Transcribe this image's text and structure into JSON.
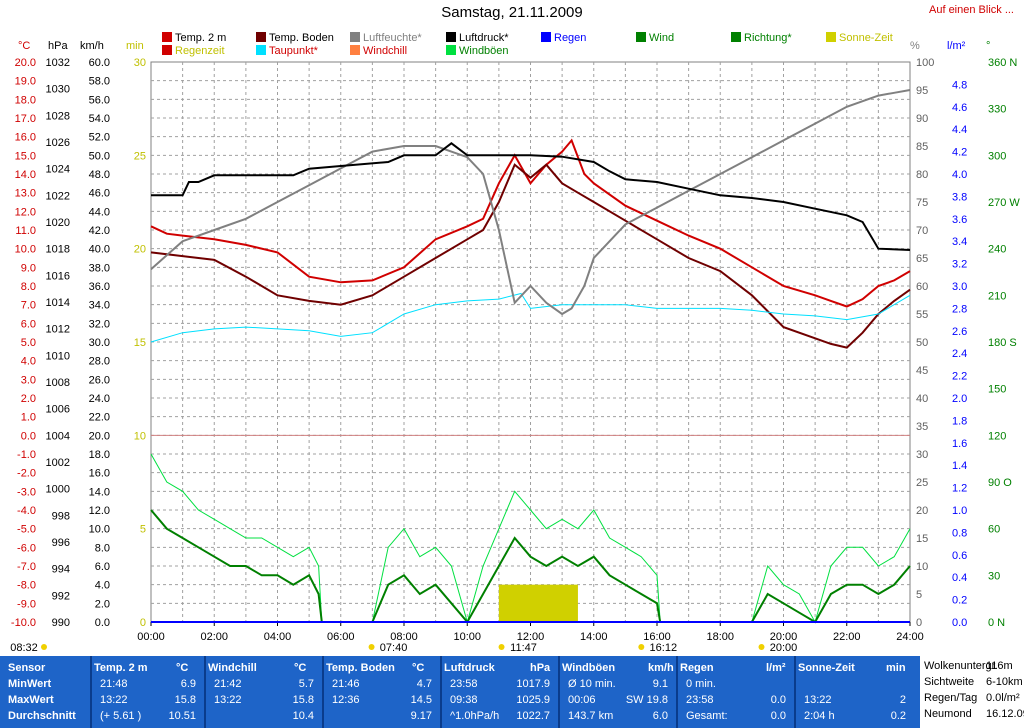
{
  "title": "Samstag, 21.11.2009",
  "link_text": "Auf einen Blick ...",
  "legend": [
    {
      "label": "Temp. 2 m",
      "color": "#d00000"
    },
    {
      "label": "Regenzeit",
      "color": "#d00000"
    },
    {
      "label": "Temp. Boden",
      "color": "#700000"
    },
    {
      "label": "Taupunkt*",
      "color": "#00e0ff"
    },
    {
      "label": "Luftfeuchte*",
      "color": "#808080"
    },
    {
      "label": "Windchill",
      "color": "#ff8040"
    },
    {
      "label": "Luftdruck*",
      "color": "#000000"
    },
    {
      "label": "Windböen",
      "color": "#00e040"
    },
    {
      "label": "Regen",
      "color": "#0000ff"
    },
    {
      "label": "Wind",
      "color": "#008000"
    },
    {
      "label": "Richtung*",
      "color": "#008000"
    },
    {
      "label": "Sonne-Zeit",
      "color": "#d0d000"
    }
  ],
  "units": {
    "temp": "°C",
    "pressure": "hPa",
    "wind": "km/h",
    "minutes": "min",
    "humidity": "%",
    "rain": "l/m²",
    "direction": "°"
  },
  "chart_data": {
    "type": "line",
    "x_ticks": [
      "00:00",
      "02:00",
      "04:00",
      "06:00",
      "08:00",
      "10:00",
      "12:00",
      "14:00",
      "16:00",
      "18:00",
      "20:00",
      "22:00",
      "24:00"
    ],
    "axes": {
      "temp": {
        "range": [
          -10,
          20
        ],
        "step": 1,
        "color": "#d00000"
      },
      "pressure": {
        "range": [
          990,
          1032
        ],
        "step": 2
      },
      "wind": {
        "range": [
          0,
          60
        ],
        "step": 2
      },
      "minutes": {
        "range": [
          0,
          30
        ],
        "step": 5,
        "color": "#c0c000"
      },
      "humidity": {
        "range": [
          0,
          100
        ],
        "step": 5
      },
      "rain": {
        "range": [
          0,
          5
        ],
        "step": 0.2,
        "color": "#0000ff"
      },
      "direction": {
        "ticks": [
          "0 N",
          "30",
          "60",
          "90 O",
          "120",
          "150",
          "180 S",
          "210",
          "240",
          "270 W",
          "300",
          "330",
          "360 N"
        ],
        "color": "#008000"
      }
    },
    "series": [
      {
        "name": "Temp. 2 m",
        "color": "#d00000",
        "x": [
          0,
          0.5,
          1,
          2,
          3,
          4,
          5,
          6,
          7,
          8,
          9,
          10,
          10.5,
          11,
          11.5,
          12,
          12.5,
          13,
          13.3,
          13.7,
          14,
          15,
          16,
          17,
          18,
          19,
          20,
          21,
          21.5,
          22,
          22.5,
          23,
          23.5,
          24
        ],
        "y": [
          11.2,
          10.8,
          10.7,
          10.5,
          10.2,
          9.8,
          8.5,
          8.2,
          8.3,
          9.0,
          10.5,
          11.2,
          11.6,
          13.5,
          15.0,
          13.5,
          14.5,
          15.2,
          15.8,
          14.0,
          13.5,
          12.3,
          11.5,
          10.7,
          10.0,
          9.0,
          8.0,
          7.5,
          7.2,
          6.9,
          7.3,
          8.0,
          8.3,
          8.8
        ]
      },
      {
        "name": "Temp. Boden",
        "color": "#700000",
        "x": [
          0,
          1,
          2,
          3,
          4,
          5,
          6,
          7,
          8,
          9,
          10,
          10.5,
          11,
          11.5,
          12,
          12.5,
          13,
          13.5,
          14,
          15,
          16,
          17,
          18,
          19,
          20,
          21,
          21.5,
          22,
          22.5,
          23,
          23.5,
          24
        ],
        "y": [
          9.8,
          9.6,
          9.4,
          8.5,
          7.5,
          7.2,
          7.0,
          7.5,
          8.5,
          9.5,
          10.5,
          11.0,
          12.5,
          14.5,
          13.8,
          14.5,
          13.5,
          13.0,
          12.5,
          11.5,
          10.5,
          9.5,
          8.8,
          7.5,
          5.8,
          5.2,
          4.9,
          4.7,
          5.5,
          6.5,
          7.2,
          7.8
        ]
      },
      {
        "name": "Taupunkt*",
        "color": "#00e0ff",
        "x": [
          0,
          1,
          2,
          3,
          4,
          5,
          6,
          7,
          8,
          9,
          10,
          11,
          11.7,
          12,
          13,
          14,
          15,
          16,
          17,
          18,
          19,
          20,
          21,
          22,
          23,
          24
        ],
        "y": [
          5.0,
          5.5,
          5.7,
          5.8,
          5.7,
          5.6,
          5.3,
          5.5,
          6.5,
          7.0,
          7.2,
          7.3,
          7.6,
          6.8,
          7.0,
          7.0,
          7.0,
          6.8,
          6.8,
          6.8,
          6.7,
          6.5,
          6.4,
          6.2,
          6.5,
          7.5
        ]
      },
      {
        "name": "Luftfeuchte*",
        "color": "#808080",
        "x": [
          0,
          1,
          2,
          3,
          4,
          5,
          6,
          7,
          8,
          9,
          10,
          10.5,
          11,
          11.5,
          12,
          12.5,
          13,
          13.3,
          13.7,
          14,
          15,
          16,
          17,
          18,
          19,
          20,
          21,
          22,
          23,
          23.5,
          24
        ],
        "y": [
          63,
          68,
          70,
          72,
          75,
          78,
          81,
          84,
          85,
          85,
          83,
          80,
          70,
          57,
          60,
          57,
          55,
          56,
          60,
          65,
          71,
          74,
          77,
          80,
          83,
          86,
          89,
          92,
          94,
          94.5,
          95
        ]
      },
      {
        "name": "Luftdruck*",
        "color": "#000000",
        "x": [
          0,
          1,
          1.2,
          1.5,
          2,
          4.5,
          5,
          6,
          7.5,
          8,
          9,
          9.5,
          10,
          12,
          13,
          14,
          14.5,
          15,
          16,
          17,
          18,
          19,
          20,
          21,
          22,
          22.5,
          23,
          24
        ],
        "y": [
          1022,
          1022,
          1023,
          1023,
          1023.5,
          1023.5,
          1024,
          1024.2,
          1024.5,
          1025.0,
          1025.0,
          1025.9,
          1025.0,
          1025.0,
          1024.9,
          1024.5,
          1023.8,
          1023.2,
          1023.0,
          1022.5,
          1022.0,
          1021.8,
          1021.5,
          1021.0,
          1020.5,
          1020.0,
          1018.0,
          1017.9
        ]
      },
      {
        "name": "Windböen",
        "color": "#00e040",
        "x": [
          0,
          0.5,
          1,
          1.5,
          2,
          2.5,
          3,
          3.5,
          4,
          4.5,
          5,
          5.3,
          5.4,
          7,
          7.5,
          8,
          8.5,
          9,
          9.5,
          10,
          10.5,
          11,
          11.5,
          12,
          12.5,
          13,
          13.5,
          14,
          14.5,
          15,
          15.5,
          16,
          16.1,
          19,
          19.5,
          20,
          20.5,
          21,
          21.5,
          22,
          22.5,
          23,
          23.5,
          24
        ],
        "y": [
          18,
          15,
          14,
          12,
          11,
          10,
          9,
          9,
          8,
          7,
          8,
          6,
          0,
          0,
          8,
          10,
          7,
          8,
          6,
          0,
          6,
          10,
          14,
          12,
          10,
          11,
          10,
          12,
          9,
          8,
          7,
          5,
          0,
          0,
          6,
          4,
          3,
          0,
          6,
          8,
          8,
          6,
          7,
          10
        ]
      },
      {
        "name": "Wind",
        "color": "#008000",
        "x": [
          0,
          0.5,
          1,
          1.5,
          2,
          2.5,
          3,
          3.5,
          4,
          4.5,
          5,
          5.3,
          5.4,
          7,
          7.5,
          8,
          8.5,
          9,
          9.5,
          10,
          10.5,
          11,
          11.5,
          12,
          12.5,
          13,
          13.5,
          14,
          14.5,
          15,
          15.5,
          16,
          16.1,
          19,
          19.5,
          20,
          20.5,
          21,
          21.5,
          22,
          22.5,
          23,
          23.5,
          24
        ],
        "y": [
          12,
          10,
          9,
          8,
          7,
          6,
          6,
          5,
          5,
          4,
          5,
          3,
          0,
          0,
          4,
          5,
          3,
          4,
          2,
          0,
          3,
          6,
          9,
          7,
          6,
          7,
          6,
          7,
          5,
          4,
          3,
          2,
          0,
          0,
          3,
          2,
          1,
          0,
          3,
          4,
          4,
          3,
          4,
          6
        ]
      },
      {
        "name": "Sonne-Zeit",
        "color": "#d0d000",
        "x": [
          11.0,
          13.5
        ],
        "y": [
          2,
          2
        ]
      }
    ],
    "direction_points_note": "",
    "sun_bar": {
      "start": "11:00",
      "end": "13:30",
      "height_min": 2
    },
    "reference_line_temp": 0,
    "time_markers": [
      {
        "label": "08:32",
        "pos": 0
      },
      {
        "label": "07:40",
        "pos": 7.67
      },
      {
        "label": "11:47",
        "pos": 11.78
      },
      {
        "label": "16:12",
        "pos": 16.2
      },
      {
        "label": "20:00",
        "pos": 20.0
      }
    ],
    "grid": true
  },
  "footer": {
    "sensor": {
      "head": "Sensor",
      "rows": [
        "MinWert",
        "MaxWert",
        "Durchschnitt"
      ]
    },
    "temp2m": {
      "head": "Temp. 2 m",
      "unit": "°C",
      "rows": [
        [
          "21:48",
          "6.9"
        ],
        [
          "13:22",
          "15.8"
        ],
        [
          "(+ 5.61 )",
          "10.51"
        ]
      ]
    },
    "windchill": {
      "head": "Windchill",
      "unit": "°C",
      "rows": [
        [
          "21:42",
          "5.7"
        ],
        [
          "13:22",
          "15.8"
        ],
        [
          "",
          "10.4"
        ]
      ]
    },
    "tempboden": {
      "head": "Temp. Boden",
      "unit": "°C",
      "rows": [
        [
          "21:46",
          "4.7"
        ],
        [
          "12:36",
          "14.5"
        ],
        [
          "",
          "9.17"
        ]
      ]
    },
    "luftdruck": {
      "head": "Luftdruck",
      "unit": "hPa",
      "rows": [
        [
          "23:58",
          "1017.9"
        ],
        [
          "09:38",
          "1025.9"
        ],
        [
          "^1.0hPa/h",
          "1022.7"
        ]
      ]
    },
    "windboeen": {
      "head": "Windböen",
      "unit": "km/h",
      "rows": [
        [
          "Ø 10 min.",
          "9.1"
        ],
        [
          "00:06",
          "SW 19.8"
        ],
        [
          "143.7 km",
          "6.0"
        ]
      ]
    },
    "regen": {
      "head": "Regen",
      "unit": "l/m²",
      "rows": [
        [
          "0 min.",
          ""
        ],
        [
          "23:58",
          "0.0"
        ],
        [
          "Gesamt:",
          "0.0"
        ]
      ]
    },
    "sonne": {
      "head": "Sonne-Zeit",
      "unit": "min",
      "rows": [
        [
          "",
          ""
        ],
        [
          "13:22",
          "2"
        ],
        [
          "2:04 h",
          "0.2"
        ]
      ]
    },
    "wolken": {
      "rows": [
        [
          "Wolkenuntergr.",
          "116m"
        ],
        [
          "Sichtweite",
          "6-10km"
        ],
        [
          "Regen/Tag",
          "0.0l/m²"
        ],
        [
          "Neumond",
          "16.12.09"
        ]
      ]
    }
  }
}
